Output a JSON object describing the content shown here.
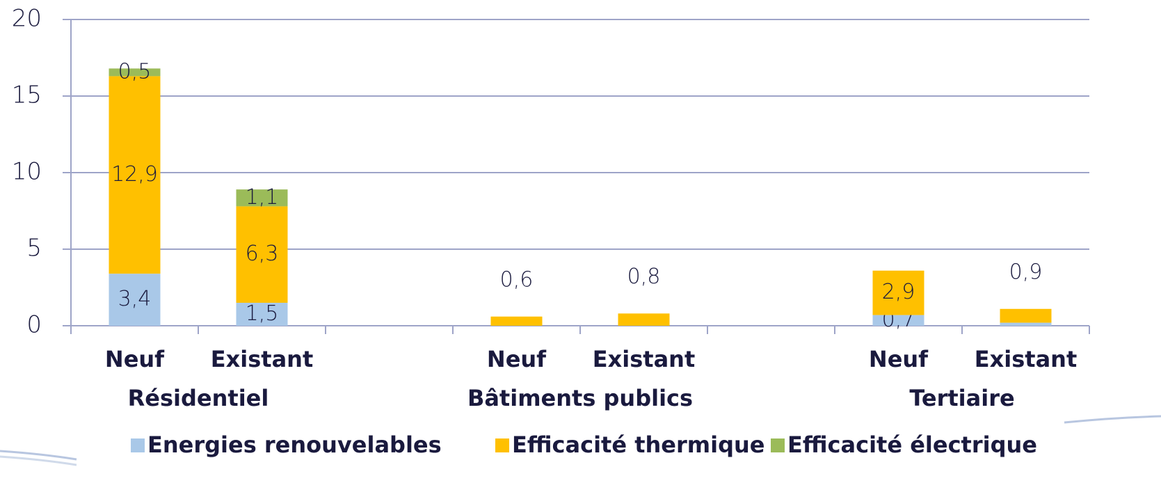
{
  "chart_data": {
    "type": "stacked_bar",
    "categories": [
      "Neuf",
      "Existant",
      null,
      "Neuf",
      "Existant",
      null,
      "Neuf",
      "Existant"
    ],
    "groups": [
      "Résidentiel",
      "Bâtiments publics",
      "Tertiaire"
    ],
    "series": [
      {
        "name": "Energies renouvelables",
        "color": "#a9c8e8",
        "values": [
          3.4,
          1.5,
          null,
          0,
          0,
          null,
          0.7,
          0.2
        ],
        "value_labels": [
          "3,4",
          "1,5",
          null,
          null,
          null,
          null,
          "0,7",
          null
        ]
      },
      {
        "name": "Efficacité thermique",
        "color": "#ffc000",
        "values": [
          12.9,
          6.3,
          null,
          0.6,
          0.8,
          null,
          2.9,
          0.9
        ],
        "value_labels": [
          "12,9",
          "6,3",
          null,
          "0,6",
          "0,8",
          null,
          "2,9",
          "0,9"
        ]
      },
      {
        "name": "Efficacité électrique",
        "color": "#9bbb59",
        "values": [
          0.5,
          1.1,
          null,
          0,
          0,
          null,
          0,
          0
        ],
        "value_labels": [
          "0,5",
          "1,1",
          null,
          null,
          null,
          null,
          null,
          null
        ]
      }
    ],
    "ylim": [
      0,
      20
    ],
    "yticks": [
      0,
      5,
      10,
      15,
      20
    ],
    "grid": true,
    "legend": "bottom"
  }
}
